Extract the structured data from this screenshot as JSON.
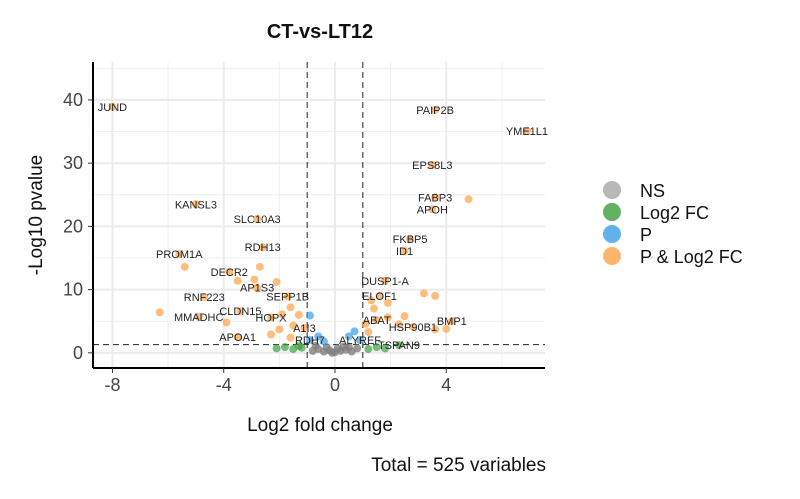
{
  "chart_data": {
    "type": "scatter",
    "title": "CT-vs-LT12",
    "xlabel": "Log2 fold change",
    "ylabel": "-Log10 pvalue",
    "caption": "Total = 525 variables",
    "xlim": [
      -8.7,
      7.55
    ],
    "ylim": [
      -2.4,
      46
    ],
    "xticks": [
      -8,
      -4,
      0,
      4
    ],
    "yticks": [
      0,
      10,
      20,
      30,
      40
    ],
    "grid": true,
    "thresholds": {
      "log2fc": [
        -1,
        1
      ],
      "neg_log10_p": 1.3
    },
    "legend": {
      "placement": "right",
      "entries": [
        {
          "name": "NS",
          "color": "#a6a6a6"
        },
        {
          "name": "Log2 FC",
          "color": "#3c9e3c"
        },
        {
          "name": "P",
          "color": "#3a9ee8"
        },
        {
          "name": "P & Log2 FC",
          "color": "#ffa347"
        }
      ]
    },
    "points": [
      {
        "x": -8.0,
        "y": 38.9,
        "group": "P & Log2 FC",
        "label": "JUND"
      },
      {
        "x": -5.0,
        "y": 23.5,
        "group": "P & Log2 FC",
        "label": "KANSL3"
      },
      {
        "x": -2.8,
        "y": 21.2,
        "group": "P & Log2 FC",
        "label": "SLC10A3"
      },
      {
        "x": -2.6,
        "y": 16.7,
        "group": "P & Log2 FC",
        "label": "RDH13"
      },
      {
        "x": -5.6,
        "y": 15.6,
        "group": "P & Log2 FC",
        "label": "PROM1A"
      },
      {
        "x": -5.4,
        "y": 13.6,
        "group": "P & Log2 FC",
        "label": ""
      },
      {
        "x": -3.8,
        "y": 12.8,
        "group": "P & Log2 FC",
        "label": "DECR2"
      },
      {
        "x": -2.7,
        "y": 13.6,
        "group": "P & Log2 FC",
        "label": ""
      },
      {
        "x": -3.5,
        "y": 11.4,
        "group": "P & Log2 FC",
        "label": ""
      },
      {
        "x": -2.9,
        "y": 11.6,
        "group": "P & Log2 FC",
        "label": ""
      },
      {
        "x": -2.1,
        "y": 11.2,
        "group": "P & Log2 FC",
        "label": ""
      },
      {
        "x": -2.8,
        "y": 10.3,
        "group": "P & Log2 FC",
        "label": "AP1S3"
      },
      {
        "x": -1.7,
        "y": 8.9,
        "group": "P & Log2 FC",
        "label": "SEPP1B"
      },
      {
        "x": -4.7,
        "y": 8.8,
        "group": "P & Log2 FC",
        "label": "RNF223"
      },
      {
        "x": -6.3,
        "y": 6.4,
        "group": "P & Log2 FC",
        "label": ""
      },
      {
        "x": -3.4,
        "y": 6.6,
        "group": "P & Log2 FC",
        "label": "CLDN15"
      },
      {
        "x": -4.9,
        "y": 5.7,
        "group": "P & Log2 FC",
        "label": "MMADHC"
      },
      {
        "x": -3.9,
        "y": 4.8,
        "group": "P & Log2 FC",
        "label": ""
      },
      {
        "x": -2.3,
        "y": 5.6,
        "group": "P & Log2 FC",
        "label": "HOPX"
      },
      {
        "x": -1.6,
        "y": 7.2,
        "group": "P & Log2 FC",
        "label": ""
      },
      {
        "x": -1.3,
        "y": 6.0,
        "group": "P & Log2 FC",
        "label": ""
      },
      {
        "x": -1.9,
        "y": 6.1,
        "group": "P & Log2 FC",
        "label": ""
      },
      {
        "x": -1.1,
        "y": 3.9,
        "group": "P & Log2 FC",
        "label": "A1I3"
      },
      {
        "x": -1.5,
        "y": 4.3,
        "group": "P & Log2 FC",
        "label": ""
      },
      {
        "x": -2.0,
        "y": 3.7,
        "group": "P & Log2 FC",
        "label": ""
      },
      {
        "x": -3.5,
        "y": 2.5,
        "group": "P & Log2 FC",
        "label": "APOA1"
      },
      {
        "x": -2.3,
        "y": 2.9,
        "group": "P & Log2 FC",
        "label": ""
      },
      {
        "x": -1.6,
        "y": 2.4,
        "group": "P & Log2 FC",
        "label": ""
      },
      {
        "x": -0.9,
        "y": 2.0,
        "group": "P",
        "label": "RDH7"
      },
      {
        "x": -0.9,
        "y": 5.9,
        "group": "P",
        "label": ""
      },
      {
        "x": -0.6,
        "y": 2.6,
        "group": "P",
        "label": ""
      },
      {
        "x": -0.4,
        "y": 1.8,
        "group": "P",
        "label": ""
      },
      {
        "x": 3.6,
        "y": 38.4,
        "group": "P & Log2 FC",
        "label": "PAIP2B"
      },
      {
        "x": 6.9,
        "y": 35.1,
        "group": "P & Log2 FC",
        "label": "YME1L1"
      },
      {
        "x": 3.5,
        "y": 29.7,
        "group": "P & Log2 FC",
        "label": "EPS8L3"
      },
      {
        "x": 3.6,
        "y": 24.6,
        "group": "P & Log2 FC",
        "label": "FABP3"
      },
      {
        "x": 4.8,
        "y": 24.3,
        "group": "P & Log2 FC",
        "label": ""
      },
      {
        "x": 3.5,
        "y": 22.7,
        "group": "P & Log2 FC",
        "label": "APOH"
      },
      {
        "x": 2.7,
        "y": 18.0,
        "group": "P & Log2 FC",
        "label": "FKBP5"
      },
      {
        "x": 2.5,
        "y": 16.1,
        "group": "P & Log2 FC",
        "label": "ID1"
      },
      {
        "x": 1.8,
        "y": 11.4,
        "group": "P & Log2 FC",
        "label": "DUSP1-A"
      },
      {
        "x": 1.6,
        "y": 9.0,
        "group": "P & Log2 FC",
        "label": "ELOF1"
      },
      {
        "x": 3.2,
        "y": 9.4,
        "group": "P & Log2 FC",
        "label": ""
      },
      {
        "x": 3.6,
        "y": 9.0,
        "group": "P & Log2 FC",
        "label": ""
      },
      {
        "x": 1.3,
        "y": 8.3,
        "group": "P & Log2 FC",
        "label": ""
      },
      {
        "x": 1.9,
        "y": 7.9,
        "group": "P & Log2 FC",
        "label": ""
      },
      {
        "x": 1.4,
        "y": 7.0,
        "group": "P & Log2 FC",
        "label": ""
      },
      {
        "x": 1.5,
        "y": 5.2,
        "group": "P & Log2 FC",
        "label": "ABAT"
      },
      {
        "x": 1.1,
        "y": 4.6,
        "group": "P & Log2 FC",
        "label": ""
      },
      {
        "x": 1.9,
        "y": 5.6,
        "group": "P & Log2 FC",
        "label": ""
      },
      {
        "x": 2.5,
        "y": 5.8,
        "group": "P & Log2 FC",
        "label": ""
      },
      {
        "x": 2.3,
        "y": 4.5,
        "group": "P & Log2 FC",
        "label": ""
      },
      {
        "x": 2.8,
        "y": 4.1,
        "group": "P & Log2 FC",
        "label": "HSP90B1"
      },
      {
        "x": 1.2,
        "y": 3.3,
        "group": "P & Log2 FC",
        "label": ""
      },
      {
        "x": 3.6,
        "y": 3.7,
        "group": "P & Log2 FC",
        "label": ""
      },
      {
        "x": 4.2,
        "y": 5.0,
        "group": "P & Log2 FC",
        "label": "BMP1"
      },
      {
        "x": 4.0,
        "y": 3.8,
        "group": "P & Log2 FC",
        "label": ""
      },
      {
        "x": 0.9,
        "y": 2.0,
        "group": "P",
        "label": "ALYREF"
      },
      {
        "x": 0.5,
        "y": 2.6,
        "group": "P",
        "label": ""
      },
      {
        "x": 0.7,
        "y": 3.4,
        "group": "P",
        "label": ""
      },
      {
        "x": 2.3,
        "y": 1.2,
        "group": "Log2 FC",
        "label": "TSPAN9"
      },
      {
        "x": 1.2,
        "y": 0.6,
        "group": "Log2 FC",
        "label": ""
      },
      {
        "x": 1.5,
        "y": 0.9,
        "group": "Log2 FC",
        "label": ""
      },
      {
        "x": 1.8,
        "y": 0.7,
        "group": "Log2 FC",
        "label": ""
      },
      {
        "x": -1.2,
        "y": 0.8,
        "group": "Log2 FC",
        "label": ""
      },
      {
        "x": -1.5,
        "y": 0.6,
        "group": "Log2 FC",
        "label": ""
      },
      {
        "x": -1.8,
        "y": 0.9,
        "group": "Log2 FC",
        "label": ""
      },
      {
        "x": -2.1,
        "y": 0.7,
        "group": "Log2 FC",
        "label": ""
      },
      {
        "x": -1.3,
        "y": 1.1,
        "group": "Log2 FC",
        "label": ""
      },
      {
        "x": -0.8,
        "y": 0.3,
        "group": "NS",
        "label": ""
      },
      {
        "x": -0.6,
        "y": 0.6,
        "group": "NS",
        "label": ""
      },
      {
        "x": -0.4,
        "y": 0.2,
        "group": "NS",
        "label": ""
      },
      {
        "x": -0.2,
        "y": 0.4,
        "group": "NS",
        "label": ""
      },
      {
        "x": 0.0,
        "y": 0.1,
        "group": "NS",
        "label": ""
      },
      {
        "x": 0.2,
        "y": 0.3,
        "group": "NS",
        "label": ""
      },
      {
        "x": 0.4,
        "y": 0.5,
        "group": "NS",
        "label": ""
      },
      {
        "x": 0.6,
        "y": 0.2,
        "group": "NS",
        "label": ""
      },
      {
        "x": 0.8,
        "y": 0.7,
        "group": "NS",
        "label": ""
      },
      {
        "x": -0.3,
        "y": 0.9,
        "group": "NS",
        "label": ""
      },
      {
        "x": 0.3,
        "y": 1.0,
        "group": "NS",
        "label": ""
      },
      {
        "x": -0.7,
        "y": 1.1,
        "group": "NS",
        "label": ""
      },
      {
        "x": 0.1,
        "y": 0.7,
        "group": "NS",
        "label": ""
      },
      {
        "x": -0.1,
        "y": 0.0,
        "group": "NS",
        "label": ""
      },
      {
        "x": 0.5,
        "y": 0.9,
        "group": "NS",
        "label": ""
      }
    ]
  }
}
